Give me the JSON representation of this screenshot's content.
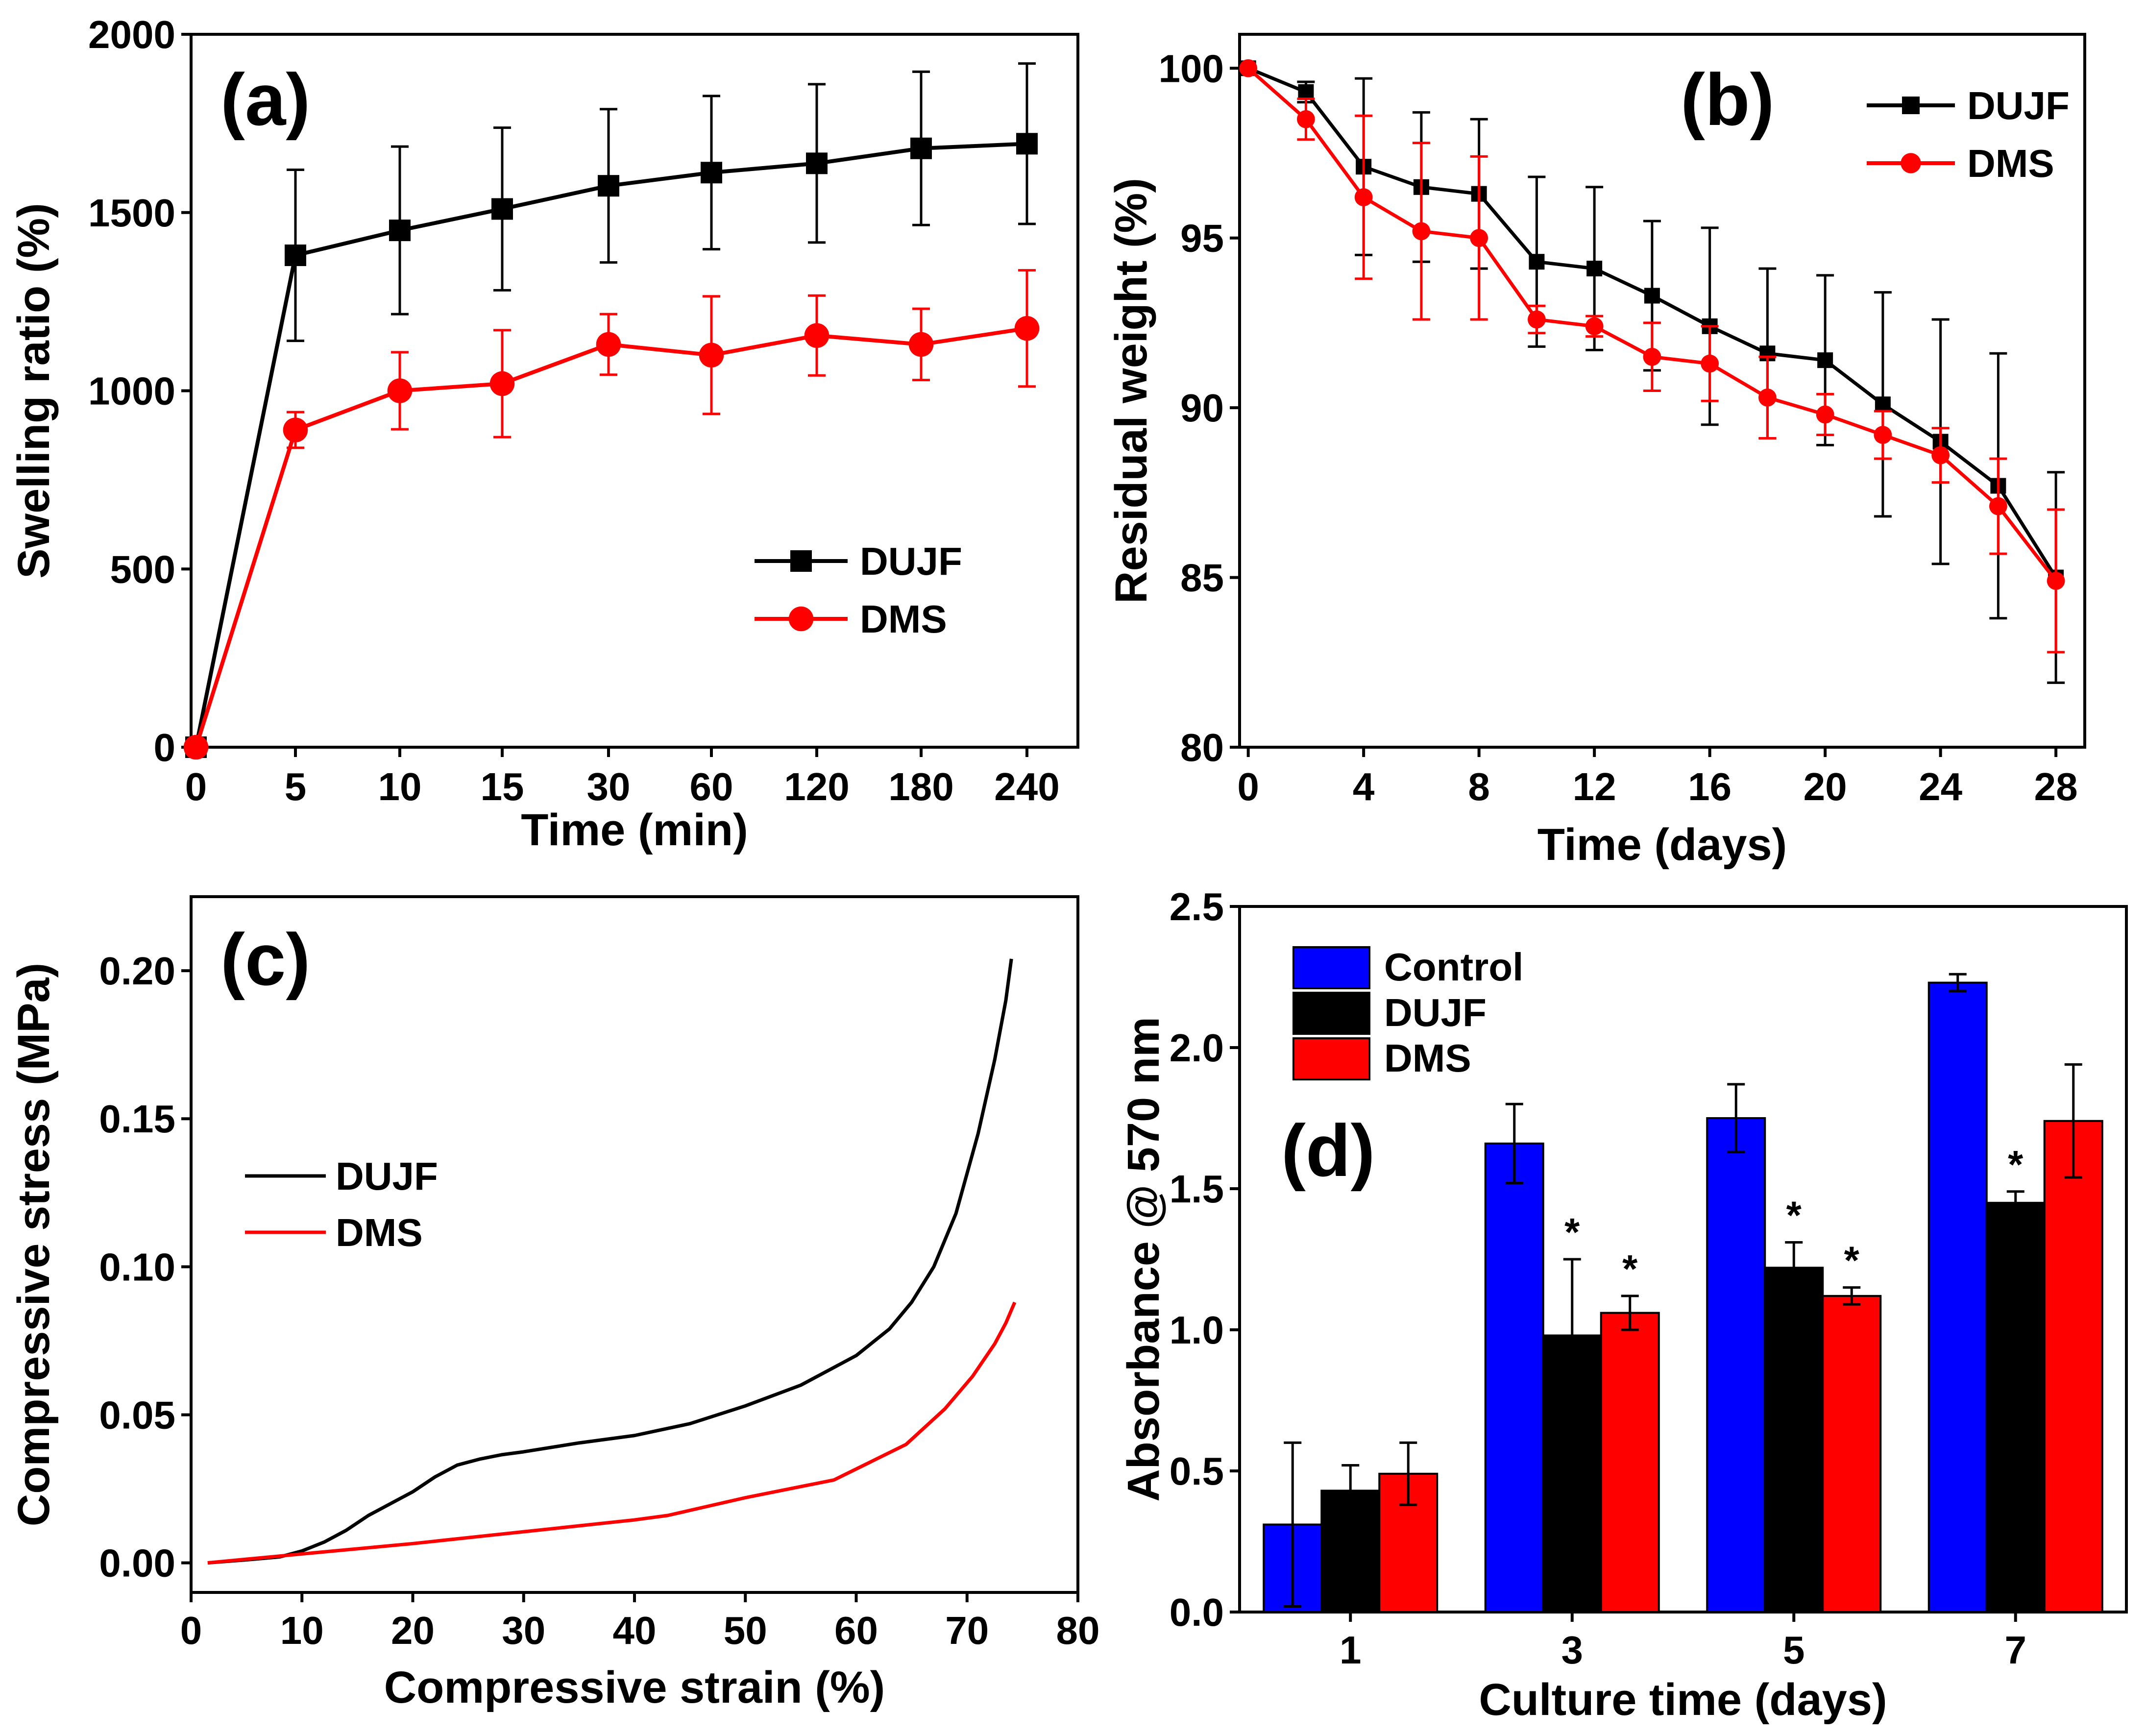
{
  "colors": {
    "dujf": "#000000",
    "dms": "#ff0000",
    "control": "#0000ff"
  },
  "chart_data": [
    {
      "id": "a",
      "panel_label": "(a)",
      "type": "line",
      "xlabel": "Time (min)",
      "ylabel": "Swelling ratio (%)",
      "categories": [
        "0",
        "5",
        "10",
        "15",
        "30",
        "60",
        "120",
        "180",
        "240"
      ],
      "ylim": [
        0,
        2000
      ],
      "yticks": [
        "0",
        "500",
        "1000",
        "1500",
        "2000"
      ],
      "legend_position": "lower-right",
      "series": [
        {
          "name": "DUJF",
          "marker": "square",
          "values": [
            0,
            1380,
            1450,
            1510,
            1575,
            1612,
            1638,
            1680,
            1693
          ],
          "errors": [
            0,
            240,
            235,
            228,
            215,
            215,
            222,
            215,
            225
          ]
        },
        {
          "name": "DMS",
          "marker": "circle",
          "values": [
            0,
            890,
            1000,
            1020,
            1130,
            1100,
            1155,
            1130,
            1175
          ],
          "errors": [
            0,
            50,
            108,
            150,
            85,
            165,
            112,
            100,
            163
          ]
        }
      ]
    },
    {
      "id": "b",
      "panel_label": "(b)",
      "type": "line",
      "xlabel": "Time (days)",
      "ylabel": "Residual weight (%)",
      "x": [
        0,
        2,
        4,
        6,
        8,
        10,
        12,
        14,
        16,
        18,
        20,
        22,
        24,
        26,
        28
      ],
      "xlim": [
        -0.3,
        29
      ],
      "xticks": [
        "0",
        "4",
        "8",
        "12",
        "16",
        "20",
        "24",
        "28"
      ],
      "ylim": [
        80,
        101
      ],
      "yticks": [
        "80",
        "85",
        "90",
        "95",
        "100"
      ],
      "legend_position": "top-right",
      "series": [
        {
          "name": "DUJF",
          "marker": "square",
          "values": [
            100,
            99.3,
            97.1,
            96.5,
            96.3,
            94.3,
            94.1,
            93.3,
            92.4,
            91.6,
            91.4,
            90.1,
            89.0,
            87.7,
            85.0
          ],
          "errors": [
            0,
            0.3,
            2.6,
            2.2,
            2.2,
            2.5,
            2.4,
            2.2,
            2.9,
            2.5,
            2.5,
            3.3,
            3.6,
            3.9,
            3.1
          ]
        },
        {
          "name": "DMS",
          "marker": "circle",
          "values": [
            100,
            98.5,
            96.2,
            95.2,
            95.0,
            92.6,
            92.4,
            91.5,
            91.3,
            90.3,
            89.8,
            89.2,
            88.6,
            87.1,
            84.9
          ],
          "errors": [
            0,
            0.6,
            2.4,
            2.6,
            2.4,
            0.4,
            0.3,
            1.0,
            1.1,
            1.2,
            0.6,
            0.7,
            0.8,
            1.4,
            2.1
          ]
        }
      ]
    },
    {
      "id": "c",
      "panel_label": "(c)",
      "type": "line",
      "xlabel": "Compressive strain (%)",
      "ylabel": "Compressive stress (MPa)",
      "xlim": [
        0,
        80
      ],
      "xticks": [
        "0",
        "10",
        "20",
        "30",
        "40",
        "50",
        "60",
        "70",
        "80"
      ],
      "ylim": [
        -0.01,
        0.225
      ],
      "yticks": [
        "0.00",
        "0.05",
        "0.10",
        "0.15",
        "0.20"
      ],
      "legend_position": "middle-left",
      "series": [
        {
          "name": "DUJF",
          "x": [
            1.5,
            5,
            8,
            10,
            12,
            14,
            16,
            18,
            20,
            22,
            24,
            26,
            28,
            30,
            35,
            40,
            45,
            50,
            55,
            60,
            63,
            65,
            67,
            69,
            71,
            72.5,
            73.5,
            74
          ],
          "y": [
            0,
            0.001,
            0.002,
            0.004,
            0.007,
            0.011,
            0.016,
            0.02,
            0.024,
            0.029,
            0.033,
            0.035,
            0.0365,
            0.0375,
            0.0405,
            0.043,
            0.047,
            0.053,
            0.06,
            0.07,
            0.079,
            0.088,
            0.1,
            0.118,
            0.145,
            0.17,
            0.19,
            0.204
          ]
        },
        {
          "name": "DMS",
          "x": [
            1.5,
            10,
            20,
            30,
            40,
            43,
            50,
            58,
            64.5,
            68,
            70.5,
            72.5,
            73.5,
            74.3
          ],
          "y": [
            0,
            0.003,
            0.0065,
            0.0105,
            0.0145,
            0.016,
            0.022,
            0.028,
            0.04,
            0.052,
            0.063,
            0.074,
            0.081,
            0.088
          ]
        }
      ]
    },
    {
      "id": "d",
      "panel_label": "(d)",
      "type": "bar",
      "xlabel": "Culture time (days)",
      "ylabel": "Absorbance @ 570 nm",
      "categories": [
        "1",
        "3",
        "5",
        "7"
      ],
      "ylim": [
        0,
        2.5
      ],
      "yticks": [
        "0.0",
        "0.5",
        "1.0",
        "1.5",
        "2.0",
        "2.5"
      ],
      "legend_position": "top-left",
      "significance_mark": "*",
      "series": [
        {
          "name": "Control",
          "values": [
            0.31,
            1.66,
            1.75,
            2.23
          ],
          "errors": [
            0.29,
            0.14,
            0.12,
            0.03
          ],
          "significant": [
            false,
            false,
            false,
            false
          ]
        },
        {
          "name": "DUJF",
          "values": [
            0.43,
            0.98,
            1.22,
            1.45
          ],
          "errors": [
            0.09,
            0.27,
            0.09,
            0.04
          ],
          "significant": [
            false,
            true,
            true,
            true
          ]
        },
        {
          "name": "DMS",
          "values": [
            0.49,
            1.06,
            1.12,
            1.74
          ],
          "errors": [
            0.11,
            0.06,
            0.03,
            0.2
          ],
          "significant": [
            false,
            true,
            true,
            false
          ]
        }
      ]
    }
  ]
}
